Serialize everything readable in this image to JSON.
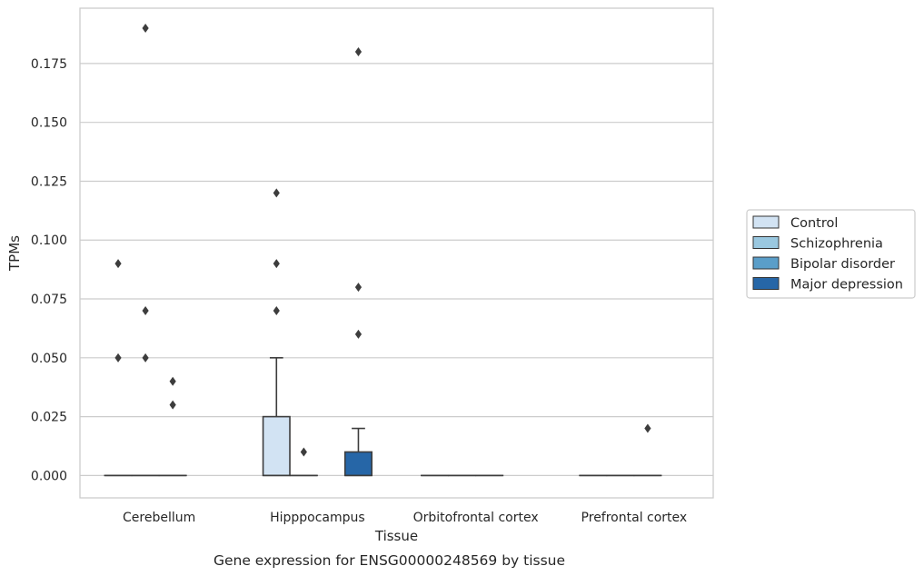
{
  "chart_data": {
    "type": "box",
    "title": "",
    "caption": "Gene expression for ENSG00000248569 by tissue",
    "xlabel": "Tissue",
    "ylabel": "TPMs",
    "ylim": [
      -0.0095,
      0.1985
    ],
    "yticks": [
      0.0,
      0.025,
      0.05,
      0.075,
      0.1,
      0.125,
      0.15,
      0.175
    ],
    "ytick_labels": [
      "0.000",
      "0.025",
      "0.050",
      "0.075",
      "0.100",
      "0.125",
      "0.150",
      "0.175"
    ],
    "grid": "horizontal",
    "legend_position": "right",
    "categories": [
      "Cerebellum",
      "Hipppocampus",
      "Orbitofrontal cortex",
      "Prefrontal cortex"
    ],
    "series": [
      {
        "name": "Control",
        "color": "#d2e3f3",
        "boxes": [
          {
            "q1": 0,
            "median": 0,
            "q3": 0,
            "whisker_low": 0,
            "whisker_high": 0,
            "outliers": [
              0.09,
              0.05
            ]
          },
          {
            "q1": 0,
            "median": 0,
            "q3": 0.025,
            "whisker_low": 0,
            "whisker_high": 0.05,
            "outliers": [
              0.12,
              0.09,
              0.07
            ]
          },
          {
            "q1": 0,
            "median": 0,
            "q3": 0,
            "whisker_low": 0,
            "whisker_high": 0,
            "outliers": []
          },
          {
            "q1": 0,
            "median": 0,
            "q3": 0,
            "whisker_low": 0,
            "whisker_high": 0,
            "outliers": []
          }
        ]
      },
      {
        "name": "Schizophrenia",
        "color": "#9ac8e0",
        "boxes": [
          {
            "q1": 0,
            "median": 0,
            "q3": 0,
            "whisker_low": 0,
            "whisker_high": 0,
            "outliers": [
              0.19,
              0.07,
              0.05
            ]
          },
          {
            "q1": 0,
            "median": 0,
            "q3": 0,
            "whisker_low": 0,
            "whisker_high": 0,
            "outliers": [
              0.01
            ]
          },
          {
            "q1": 0,
            "median": 0,
            "q3": 0,
            "whisker_low": 0,
            "whisker_high": 0,
            "outliers": []
          },
          {
            "q1": 0,
            "median": 0,
            "q3": 0,
            "whisker_low": 0,
            "whisker_high": 0,
            "outliers": []
          }
        ]
      },
      {
        "name": "Bipolar disorder",
        "color": "#5a9ec9",
        "boxes": [
          {
            "q1": 0,
            "median": 0,
            "q3": 0,
            "whisker_low": 0,
            "whisker_high": 0,
            "outliers": [
              0.04,
              0.03
            ]
          },
          null,
          {
            "q1": 0,
            "median": 0,
            "q3": 0,
            "whisker_low": 0,
            "whisker_high": 0,
            "outliers": []
          },
          {
            "q1": 0,
            "median": 0,
            "q3": 0,
            "whisker_low": 0,
            "whisker_high": 0,
            "outliers": [
              0.02
            ]
          }
        ]
      },
      {
        "name": "Major depression",
        "color": "#2666a7",
        "boxes": [
          null,
          {
            "q1": 0,
            "median": 0,
            "q3": 0.01,
            "whisker_low": 0,
            "whisker_high": 0.02,
            "outliers": [
              0.18,
              0.08,
              0.06
            ]
          },
          null,
          null
        ]
      }
    ]
  }
}
